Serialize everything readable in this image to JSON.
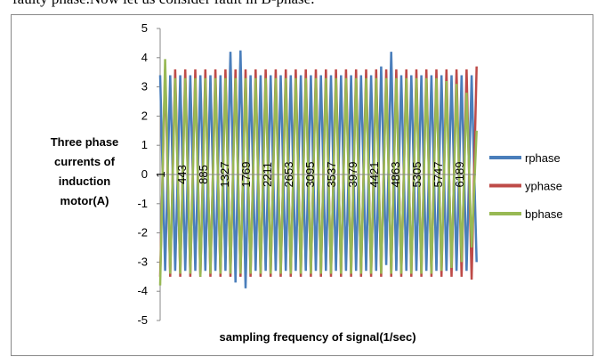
{
  "page_text": "faulty phase.Now let us consider fault in B-phase.",
  "chart_data": {
    "type": "line",
    "ylabel": [
      "Three phase",
      "currents of",
      "induction",
      "motor(A)"
    ],
    "xlabel": "sampling frequency of signal(1/sec)",
    "x": [
      1,
      105,
      209,
      313,
      417,
      521,
      625,
      729,
      833,
      937,
      1041,
      1145,
      1249,
      1353,
      1457,
      1561,
      1665,
      1769,
      1873,
      1977,
      2081,
      2185,
      2289,
      2393,
      2497,
      2601,
      2705,
      2809,
      2913,
      3017,
      3121,
      3225,
      3329,
      3433,
      3537,
      3641,
      3745,
      3849,
      3953,
      4057,
      4161,
      4265,
      4369,
      4473,
      4577,
      4681,
      4785,
      4889,
      4993,
      5097,
      5201,
      5305,
      5409,
      5513,
      5617,
      5721,
      5825,
      5929,
      6033,
      6137,
      6241,
      6345,
      6449,
      6553
    ],
    "series": [
      {
        "name": "rphase",
        "color": "#4a7ebb",
        "values": [
          3.4,
          -3.3,
          3.4,
          -3.3,
          3.4,
          -3.3,
          3.4,
          -3.3,
          3.4,
          -3.3,
          3.4,
          -3.3,
          3.4,
          -3.3,
          4.2,
          -3.7,
          4.25,
          -3.9,
          3.4,
          -3.3,
          3.4,
          -3.3,
          3.4,
          -3.3,
          3.4,
          -3.3,
          3.4,
          -3.3,
          3.4,
          -3.3,
          3.4,
          -3.3,
          3.4,
          -3.3,
          3.4,
          -3.3,
          3.4,
          -3.3,
          3.4,
          -3.3,
          3.4,
          -3.3,
          3.4,
          -3.3,
          3.7,
          -3.1,
          4.2,
          -3.3,
          3.4,
          -3.3,
          3.4,
          -3.3,
          3.4,
          -3.3,
          3.4,
          -3.3,
          3.4,
          -3.3,
          3.4,
          -3.3,
          3.4,
          -3.3,
          3.4,
          -3.0
        ]
      },
      {
        "name": "yphase",
        "color": "#be4b48",
        "values": [
          -3.5,
          3.6,
          -3.5,
          3.6,
          -3.5,
          3.6,
          -3.5,
          3.6,
          -3.5,
          3.6,
          -3.5,
          3.6,
          -3.5,
          3.6,
          -3.5,
          3.6,
          -3.5,
          3.6,
          -3.5,
          3.6,
          -3.5,
          3.6,
          -3.5,
          3.6,
          -3.5,
          3.6,
          -3.5,
          3.6,
          -3.5,
          3.6,
          -3.5,
          3.6,
          -3.5,
          3.6,
          -3.5,
          3.6,
          -3.5,
          3.6,
          -3.5,
          3.6,
          -3.5,
          3.6,
          -3.5,
          3.6,
          -3.5,
          3.6,
          -3.5,
          3.6,
          -3.5,
          3.6,
          -3.5,
          3.6,
          -3.5,
          3.6,
          -3.5,
          3.6,
          -3.5,
          3.6,
          -3.5,
          3.6,
          -3.5,
          3.6,
          -3.6,
          3.7
        ]
      },
      {
        "name": "bphase",
        "color": "#98b954",
        "values": [
          -3.8,
          3.95,
          -3.4,
          3.3,
          -3.4,
          3.3,
          -3.4,
          3.3,
          -3.5,
          3.3,
          -3.4,
          3.3,
          -3.4,
          3.3,
          -3.4,
          3.3,
          -3.4,
          3.3,
          -3.4,
          3.3,
          -3.4,
          3.3,
          -3.4,
          3.3,
          -3.4,
          3.3,
          -3.4,
          3.3,
          -3.4,
          3.3,
          -3.4,
          3.3,
          -3.4,
          3.3,
          -3.4,
          3.3,
          -3.4,
          3.3,
          -3.4,
          3.3,
          -3.4,
          3.3,
          -3.4,
          3.3,
          -3.4,
          3.3,
          -3.4,
          3.3,
          -3.4,
          3.3,
          -3.4,
          3.3,
          -3.4,
          3.3,
          -3.4,
          3.3,
          -3.3,
          3.2,
          -3.2,
          3.1,
          -3.0,
          2.8,
          -2.5,
          1.5
        ]
      }
    ],
    "xlim": [
      1,
      6540
    ],
    "xticks": [
      1,
      443,
      885,
      1327,
      1769,
      2211,
      2653,
      3095,
      3537,
      3979,
      4421,
      4863,
      5305,
      5747,
      6189
    ],
    "ylim": [
      -5,
      5
    ],
    "yticks": [
      -5,
      -4,
      -3,
      -2,
      -1,
      0,
      1,
      2,
      3,
      4,
      5
    ],
    "legend": "right"
  }
}
